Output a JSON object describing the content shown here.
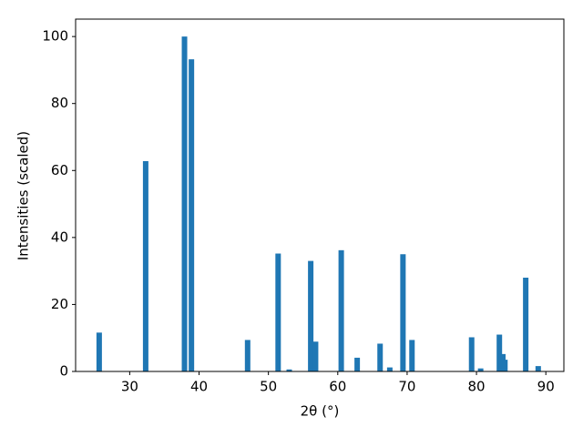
{
  "chart_data": {
    "type": "bar",
    "x_label": "2θ (°)",
    "y_label": "Intensities (scaled)",
    "x": [
      25.6,
      32.3,
      37.9,
      38.9,
      47.0,
      51.4,
      53.0,
      56.1,
      56.8,
      60.5,
      62.8,
      66.1,
      67.5,
      69.4,
      70.7,
      79.3,
      80.6,
      83.3,
      83.8,
      84.1,
      87.1,
      88.9
    ],
    "values": [
      11.6,
      62.8,
      100,
      93.2,
      9.4,
      35.2,
      0.6,
      33,
      8.9,
      36.2,
      4.1,
      8.3,
      1.2,
      35,
      9.4,
      10.2,
      0.9,
      11,
      5.2,
      3.5,
      28,
      1.6
    ],
    "color": "#1f77b4",
    "xlim": [
      22.2,
      92.6
    ],
    "xticks": [
      30,
      40,
      50,
      60,
      70,
      80,
      90
    ],
    "ylim": [
      0,
      105.2
    ],
    "yticks": [
      0,
      20,
      40,
      60,
      80,
      100
    ],
    "grid": false
  }
}
